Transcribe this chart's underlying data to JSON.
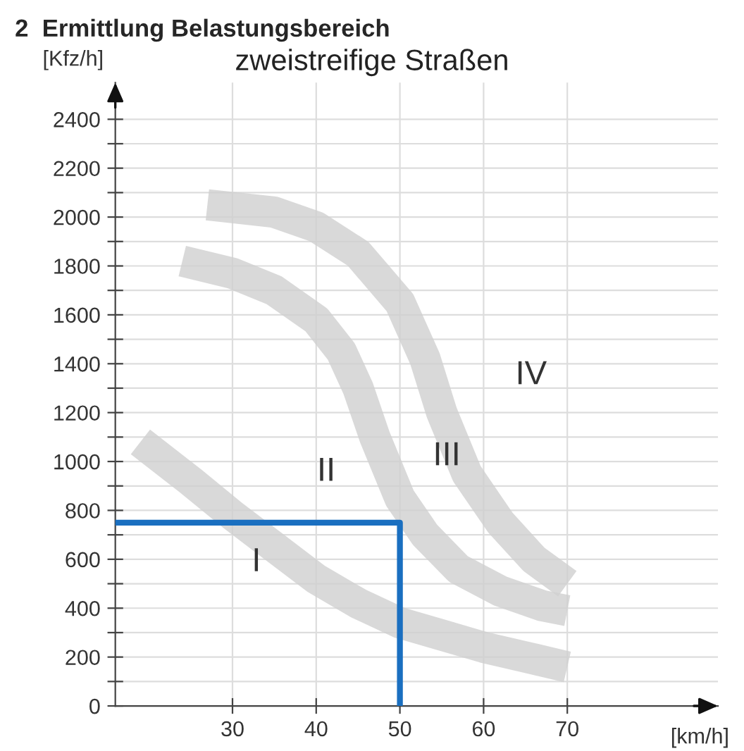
{
  "chart_data": {
    "type": "line",
    "title": "2  Ermittlung Belastungsbereich",
    "subtitle": "zweistreifige Straßen",
    "xlabel": "[km/h]",
    "ylabel": "[Kfz/h]",
    "xlim": [
      16,
      88
    ],
    "ylim": [
      0,
      2550
    ],
    "xticks": [
      30,
      40,
      50,
      60,
      70
    ],
    "yticks": [
      0,
      {
        "value": 100,
        "label": null
      },
      200,
      {
        "value": 300,
        "label": null
      },
      400,
      {
        "value": 500,
        "label": null
      },
      600,
      {
        "value": 700,
        "label": null
      },
      800,
      {
        "value": 900,
        "label": null
      },
      1000,
      {
        "value": 1100,
        "label": null
      },
      1200,
      {
        "value": 1300,
        "label": null
      },
      1400,
      {
        "value": 1500,
        "label": null
      },
      1600,
      {
        "value": 1700,
        "label": null
      },
      1800,
      {
        "value": 1900,
        "label": null
      },
      2000,
      {
        "value": 2100,
        "label": null
      },
      2200,
      {
        "value": 2300,
        "label": null
      },
      2400
    ],
    "grid": true,
    "marker": "none",
    "series": [
      {
        "color": "#d0d0d0",
        "x": [
          19,
          25,
          30,
          35,
          40,
          45,
          50,
          55,
          60,
          65,
          70
        ],
        "values": [
          1080,
          920,
          780,
          650,
          520,
          420,
          340,
          290,
          240,
          200,
          160
        ]
      },
      {
        "color": "#d0d0d0",
        "x": [
          24,
          30,
          35,
          40,
          43,
          45,
          47,
          50,
          53,
          57,
          62,
          67,
          70
        ],
        "values": [
          1820,
          1770,
          1700,
          1580,
          1450,
          1300,
          1100,
          850,
          700,
          560,
          470,
          410,
          390
        ]
      },
      {
        "color": "#d0d0d0",
        "x": [
          27,
          35,
          40,
          45,
          50,
          53,
          55,
          58,
          62,
          66,
          70
        ],
        "values": [
          2050,
          2020,
          1960,
          1850,
          1650,
          1420,
          1200,
          950,
          750,
          600,
          500
        ]
      },
      {
        "color": "#1a6fc0",
        "line_style": "solid",
        "x": [
          16,
          50,
          50
        ],
        "values": [
          750,
          750,
          0
        ]
      }
    ],
    "annotations": [
      "I",
      "II",
      "III",
      "IV"
    ]
  }
}
